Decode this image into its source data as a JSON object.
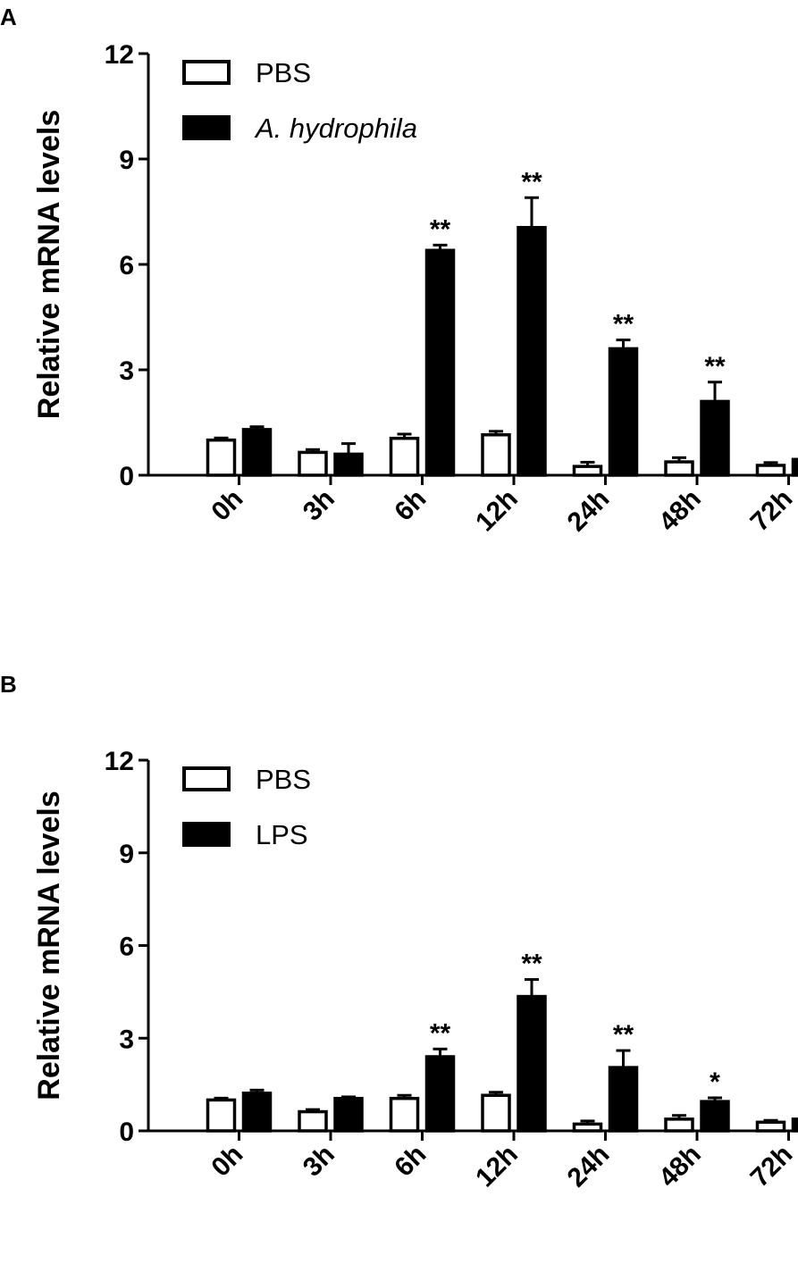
{
  "chart_data": [
    {
      "panel": "A",
      "type": "bar",
      "ylabel": "Relative mRNA levels",
      "xlabel": "",
      "ylim": [
        0,
        12
      ],
      "yticks": [
        0,
        3,
        6,
        9,
        12
      ],
      "categories": [
        "0h",
        "3h",
        "6h",
        "12h",
        "24h",
        "48h",
        "72h"
      ],
      "legend_position": "top-left",
      "series": [
        {
          "name": "PBS",
          "fill": "#ffffff",
          "values": [
            1.0,
            0.65,
            1.05,
            1.15,
            0.25,
            0.38,
            0.28
          ],
          "errors": [
            0.06,
            0.08,
            0.12,
            0.1,
            0.12,
            0.12,
            0.08
          ]
        },
        {
          "name": "A. hydrophila",
          "italic": true,
          "fill": "#000000",
          "values": [
            1.3,
            0.6,
            6.4,
            7.05,
            3.6,
            2.1,
            0.45
          ],
          "errors": [
            0.08,
            0.3,
            0.15,
            0.85,
            0.25,
            0.55,
            0.12
          ]
        }
      ],
      "significance": [
        "",
        "",
        "**",
        "**",
        "**",
        "**",
        ""
      ]
    },
    {
      "panel": "B",
      "type": "bar",
      "ylabel": "Relative mRNA levels",
      "xlabel": "",
      "ylim": [
        0,
        12
      ],
      "yticks": [
        0,
        3,
        6,
        9,
        12
      ],
      "categories": [
        "0h",
        "3h",
        "6h",
        "12h",
        "24h",
        "48h",
        "72h"
      ],
      "legend_position": "top-left",
      "series": [
        {
          "name": "PBS",
          "fill": "#ffffff",
          "values": [
            1.0,
            0.62,
            1.05,
            1.15,
            0.22,
            0.38,
            0.28
          ],
          "errors": [
            0.06,
            0.07,
            0.1,
            0.1,
            0.1,
            0.12,
            0.06
          ]
        },
        {
          "name": "LPS",
          "italic": false,
          "fill": "#000000",
          "values": [
            1.22,
            1.05,
            2.4,
            4.35,
            2.05,
            0.95,
            0.38
          ],
          "errors": [
            0.1,
            0.05,
            0.25,
            0.55,
            0.55,
            0.12,
            0.06
          ]
        }
      ],
      "significance": [
        "",
        "",
        "**",
        "**",
        "**",
        "*",
        ""
      ]
    }
  ]
}
